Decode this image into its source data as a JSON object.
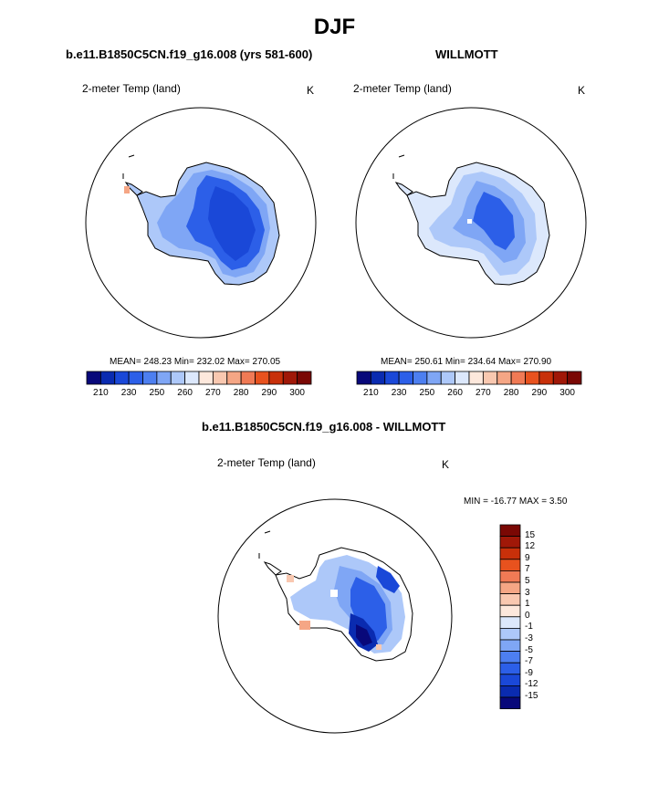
{
  "title": "DJF",
  "panels": [
    {
      "title": "b.e11.B1850C5CN.f19_g16.008 (yrs 581-600)",
      "variable": "2-meter Temp (land)",
      "units": "K",
      "stats": "MEAN= 248.23  Min= 232.02  Max= 270.05"
    },
    {
      "title": "WILLMOTT",
      "variable": "2-meter Temp (land)",
      "units": "K",
      "stats": "MEAN= 250.61  Min= 234.64  Max= 270.90"
    }
  ],
  "colorbar_abs": {
    "ticks": [
      "210",
      "230",
      "250",
      "260",
      "270",
      "280",
      "290",
      "300"
    ],
    "colors": [
      "#08087a",
      "#0a2bb0",
      "#1a48d8",
      "#2c5fe8",
      "#4d7ff0",
      "#7fa6f5",
      "#adc8f9",
      "#dce8fc",
      "#fde8dc",
      "#f9c8b0",
      "#f5a685",
      "#f07a55",
      "#e8521e",
      "#c8300a",
      "#a01808",
      "#7a0804"
    ]
  },
  "diff_panel": {
    "title": "b.e11.B1850C5CN.f19_g16.008 - WILLMOTT",
    "variable": "2-meter Temp (land)",
    "units": "K",
    "minmax": "MIN = -16.77 MAX =   3.50",
    "colorbar_ticks": [
      "15",
      "12",
      "9",
      "7",
      "5",
      "3",
      "1",
      "0",
      "-1",
      "-3",
      "-5",
      "-7",
      "-9",
      "-12",
      "-15"
    ],
    "colorbar_colors": [
      "#7a0804",
      "#a01808",
      "#c8300a",
      "#e8521e",
      "#f07a55",
      "#f5a685",
      "#f9c8b0",
      "#fde8dc",
      "#dce8fc",
      "#adc8f9",
      "#7fa6f5",
      "#4d7ff0",
      "#2c5fe8",
      "#1a48d8",
      "#0a2bb0",
      "#08087a"
    ]
  }
}
